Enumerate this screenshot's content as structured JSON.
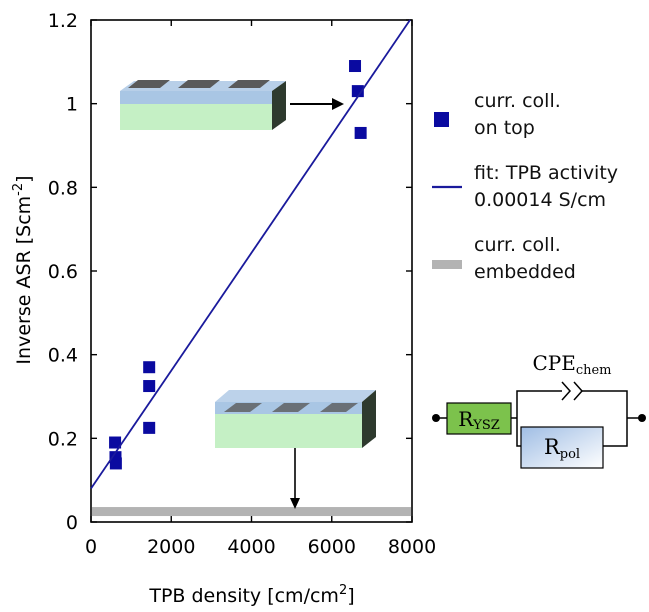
{
  "chart_data": {
    "type": "scatter",
    "xlabel": "TPB density [cm/cm",
    "xlabel_sup": "2",
    "xlabel_end": "]",
    "ylabel": "Inverse ASR [Scm",
    "ylabel_sup": "-2",
    "ylabel_end": "]",
    "xlim": [
      0,
      8000
    ],
    "ylim": [
      0,
      1.2
    ],
    "x_ticks": [
      0,
      2000,
      4000,
      6000,
      8000
    ],
    "x_tick_labels": [
      "0",
      "2000",
      "4000",
      "6000",
      "8000"
    ],
    "y_ticks": [
      0,
      0.2,
      0.4,
      0.6,
      0.8,
      1.0,
      1.2
    ],
    "y_tick_labels": [
      "0",
      "0.2",
      "0.4",
      "0.6",
      "0.8",
      "1",
      "1.2"
    ],
    "series": [
      {
        "name_lines": [
          "curr. coll.",
          "on top"
        ],
        "kind": "scatter",
        "color": "#0a0aa0",
        "points": [
          [
            600,
            0.19
          ],
          [
            610,
            0.155
          ],
          [
            620,
            0.14
          ],
          [
            1450,
            0.37
          ],
          [
            1450,
            0.325
          ],
          [
            1450,
            0.225
          ],
          [
            6580,
            1.09
          ],
          [
            6650,
            1.03
          ],
          [
            6720,
            0.93
          ]
        ]
      },
      {
        "name_lines": [
          "fit: TPB activity",
          "0.00014 S/cm"
        ],
        "kind": "line",
        "color": "#1a1a9c",
        "points": [
          [
            0,
            0.08
          ],
          [
            7950,
            1.2
          ]
        ]
      },
      {
        "name_lines": [
          "curr. coll.",
          "embedded"
        ],
        "kind": "band",
        "color": "#b3b3b3",
        "y": 0.025
      }
    ],
    "legend_position": "right",
    "grid": false
  },
  "circuit": {
    "resistor_ysz": {
      "main": "R",
      "sub": "YSZ",
      "color": "#7cc24c"
    },
    "resistor_pol": {
      "main": "R",
      "sub": "pol",
      "color": "#c9daf0"
    },
    "cpe": {
      "main": "CPE",
      "sub": "chem"
    }
  },
  "insets": {
    "top_layer_color": "#a9c6e4",
    "base_layer_color": "#c5f0c5",
    "collector_color": "#5a5a5a",
    "side_color": "#2e3a2e"
  }
}
